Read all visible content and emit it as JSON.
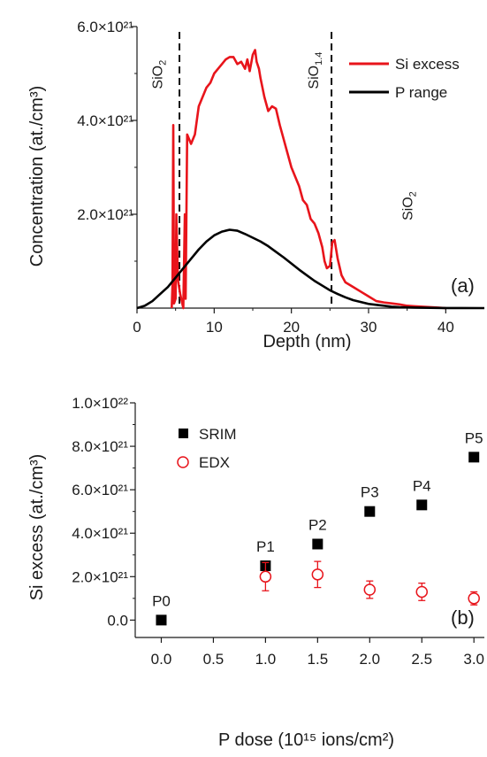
{
  "chart_data": [
    {
      "type": "line",
      "panel_label": "(a)",
      "xlabel": "Depth (nm)",
      "ylabel": "Concentration (at./cm³)",
      "xlim": [
        0,
        45
      ],
      "ylim": [
        0,
        6e+21
      ],
      "x_ticks": [
        0,
        10,
        20,
        30,
        40
      ],
      "x_tick_labels": [
        "0",
        "10",
        "20",
        "30",
        "40"
      ],
      "y_ticks": [
        2e+21,
        4e+21,
        6e+21
      ],
      "y_tick_labels": [
        "2.0×10²¹",
        "4.0×10²¹",
        "6.0×10²¹"
      ],
      "legend_position": "top-right",
      "series": [
        {
          "name": "Si excess",
          "color": "#e8141b",
          "x": [
            4.5,
            4.6,
            4.7,
            4.8,
            5.0,
            5.1,
            5.3,
            5.6,
            6.0,
            6.2,
            6.3,
            6.5,
            7,
            7.5,
            8,
            8.5,
            9,
            9.5,
            10,
            10.5,
            11,
            11.5,
            12,
            12.5,
            13,
            13.5,
            14,
            14.3,
            14.6,
            15,
            15.3,
            15.5,
            15.8,
            16,
            16.5,
            17,
            17.5,
            18,
            18.5,
            19,
            19.5,
            20,
            20.5,
            21,
            21.5,
            22,
            22.5,
            23,
            23.5,
            24,
            24.3,
            24.6,
            25,
            25.3,
            25.6,
            26,
            26.5,
            27,
            28,
            29,
            30,
            31,
            32,
            33,
            34,
            35,
            36,
            37,
            38,
            39,
            40
          ],
          "y": [
            0,
            5e+20,
            3.9e+21,
            1e+20,
            2e+20,
            2e+21,
            6e+20,
            3e+20,
            0,
            2e+21,
            2e+20,
            3.7e+21,
            3.5e+21,
            3.7e+21,
            4.3e+21,
            4.5e+21,
            4.7e+21,
            4.8e+21,
            5e+21,
            5.1e+21,
            5.2e+21,
            5.3e+21,
            5.35e+21,
            5.35e+21,
            5.2e+21,
            5.25e+21,
            5.1e+21,
            5.3e+21,
            5.05e+21,
            5.4e+21,
            5.5e+21,
            5.25e+21,
            5.1e+21,
            4.9e+21,
            4.5e+21,
            4.2e+21,
            4.3e+21,
            4.25e+21,
            3.9e+21,
            3.6e+21,
            3.3e+21,
            3e+21,
            2.8e+21,
            2.6e+21,
            2.3e+21,
            2.2e+21,
            1.9e+21,
            1.8e+21,
            1.6e+21,
            1.3e+21,
            1e+21,
            8.5e+20,
            9e+20,
            1.4e+21,
            1.45e+21,
            1.05e+21,
            7e+20,
            5.5e+20,
            4.5e+20,
            3.5e+20,
            2.5e+20,
            1.5e+20,
            1.2e+20,
            1e+20,
            8e+19,
            5e+19,
            4e+19,
            3e+19,
            2e+19,
            1e+19,
            0.0
          ]
        },
        {
          "name": "P range",
          "color": "#000000",
          "x": [
            0,
            1,
            2,
            3,
            4,
            5,
            6,
            7,
            8,
            9,
            10,
            11,
            12,
            13,
            14,
            15,
            16,
            17,
            18,
            19,
            20,
            21,
            22,
            23,
            24,
            25,
            26,
            27,
            28,
            29,
            30,
            31,
            32,
            33,
            34,
            35,
            36,
            37,
            38,
            39,
            40,
            42,
            45
          ],
          "y": [
            0,
            5e+19,
            1.5e+20,
            3e+20,
            4.5e+20,
            6.5e+20,
            8.5e+20,
            1.05e+21,
            1.25e+21,
            1.42e+21,
            1.55e+21,
            1.63e+21,
            1.67e+21,
            1.65e+21,
            1.58e+21,
            1.5e+21,
            1.42e+21,
            1.32e+21,
            1.2e+21,
            1.08e+21,
            9.5e+20,
            8.2e+20,
            7e+20,
            5.8e+20,
            4.8e+20,
            3.8e+20,
            3e+20,
            2.3e+20,
            1.7e+20,
            1.3e+20,
            9e+19,
            7e+19,
            5e+19,
            3e+19,
            2e+19,
            1.5e+19,
            1e+19,
            8e+18,
            5e+18,
            3e+18,
            2e+18,
            1e+18,
            0
          ]
        }
      ],
      "vlines": [
        5.5,
        25.2
      ],
      "annotations": [
        {
          "text": "SiO",
          "sub": "2",
          "x": 2.6,
          "y": 5.8e+21
        },
        {
          "text": "SiO",
          "sub": "1.4",
          "x": 22.8,
          "y": 5.8e+21
        },
        {
          "text": "SiO",
          "sub": "2",
          "x": 35.0,
          "y": 3e+21
        }
      ]
    },
    {
      "type": "scatter",
      "panel_label": "(b)",
      "xlabel": "P dose (10¹⁵ ions/cm²)",
      "ylabel": "Si excess (at./cm³)",
      "xlim": [
        -0.25,
        3.1
      ],
      "ylim": [
        -8e+20,
        1e+22
      ],
      "x_ticks": [
        0.0,
        0.5,
        1.0,
        1.5,
        2.0,
        2.5,
        3.0
      ],
      "x_tick_labels": [
        "0.0",
        "0.5",
        "1.0",
        "1.5",
        "2.0",
        "2.5",
        "3.0"
      ],
      "y_ticks": [
        0,
        2e+21,
        4e+21,
        6e+21,
        8e+21,
        1e+22
      ],
      "y_tick_labels": [
        "0.0",
        "2.0×10²¹",
        "4.0×10²¹",
        "6.0×10²¹",
        "8.0×10²¹",
        "1.0×10²²"
      ],
      "legend_position": "top-left",
      "series": [
        {
          "name": "SRIM",
          "color": "#000000",
          "marker": "square",
          "x": [
            0.0,
            1.0,
            1.5,
            2.0,
            2.5,
            3.0
          ],
          "y": [
            0,
            2.5e+21,
            3.5e+21,
            5e+21,
            5.3e+21,
            7.5e+21
          ],
          "labels": [
            "P0",
            "P1",
            "P2",
            "P3",
            "P4",
            "P5"
          ]
        },
        {
          "name": "EDX",
          "color": "#e8141b",
          "marker": "open-circle",
          "x": [
            1.0,
            1.5,
            2.0,
            2.5,
            3.0
          ],
          "y": [
            2e+21,
            2.1e+21,
            1.4e+21,
            1.3e+21,
            1e+21
          ],
          "err": [
            6.5e+20,
            6e+20,
            4e+20,
            4e+20,
            3e+20
          ]
        }
      ]
    }
  ]
}
